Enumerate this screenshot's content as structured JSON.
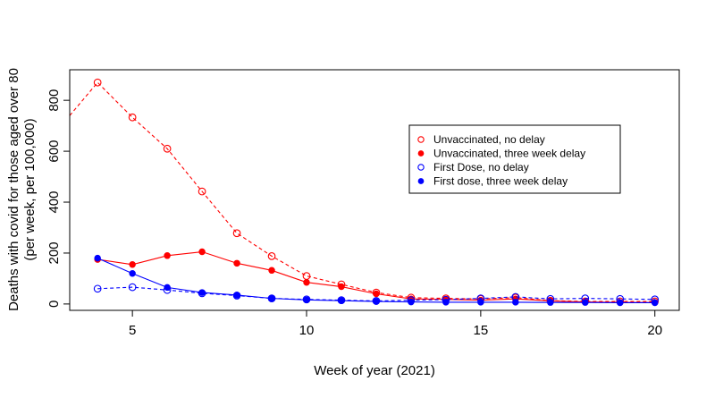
{
  "chart_data": {
    "type": "line",
    "xlabel": "Week of year (2021)",
    "ylabel": [
      "Deaths with covid for those aged over 80",
      "(per week, per 100,000)"
    ],
    "xlim": [
      3.2,
      20.7
    ],
    "ylim": [
      -25,
      920
    ],
    "x_ticks": [
      5,
      10,
      15,
      20
    ],
    "y_ticks": [
      0,
      200,
      400,
      600,
      800
    ],
    "grid": false,
    "legend_position": "top-right",
    "x": [
      4,
      5,
      6,
      7,
      8,
      9,
      10,
      11,
      12,
      13,
      14,
      15,
      16,
      17,
      18,
      19,
      20
    ],
    "series": [
      {
        "name": "Unvaccinated, no delay",
        "color": "#FF0000",
        "marker": "open-circle",
        "line": "dashed",
        "values": [
          870,
          733,
          610,
          442,
          278,
          188,
          110,
          77,
          45,
          25,
          22,
          20,
          25,
          13,
          10,
          10,
          10
        ],
        "lead_in": {
          "x": 3.2,
          "y": 740
        }
      },
      {
        "name": "Unvaccinated, three week delay",
        "color": "#FF0000",
        "marker": "filled-circle",
        "line": "solid",
        "values": [
          175,
          155,
          190,
          205,
          160,
          132,
          85,
          68,
          40,
          20,
          18,
          15,
          20,
          12,
          8,
          6,
          6
        ]
      },
      {
        "name": "First Dose, no delay",
        "color": "#0000FF",
        "marker": "open-circle",
        "line": "dashed",
        "values": [
          60,
          66,
          55,
          42,
          33,
          22,
          18,
          15,
          12,
          15,
          17,
          22,
          28,
          20,
          22,
          20,
          18
        ]
      },
      {
        "name": "First dose, three week delay",
        "color": "#0000FF",
        "marker": "filled-circle",
        "line": "solid",
        "values": [
          180,
          120,
          65,
          45,
          35,
          22,
          16,
          13,
          10,
          8,
          7,
          7,
          7,
          6,
          6,
          5,
          5
        ]
      }
    ]
  }
}
